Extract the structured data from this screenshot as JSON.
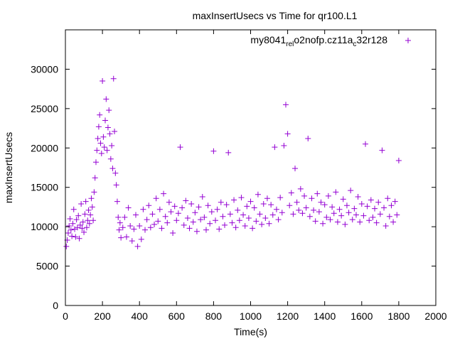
{
  "chart_data": {
    "type": "scatter",
    "title": "maxInsertUsecs vs Time for qr100.L1",
    "xlabel": "Time(s)",
    "ylabel": "maxInsertUsecs",
    "xlim": [
      0,
      2000
    ],
    "ylim": [
      0,
      35000
    ],
    "x_ticks": [
      0,
      200,
      400,
      600,
      800,
      1000,
      1200,
      1400,
      1600,
      1800,
      2000
    ],
    "y_ticks": [
      0,
      5000,
      10000,
      15000,
      20000,
      25000,
      30000
    ],
    "grid": false,
    "legend_position": "top-right",
    "marker": "plus",
    "series": [
      {
        "name": "my8041_rel_o2nofp.cz11a_c32r128",
        "legend_parts": [
          {
            "text": "my8041",
            "sub": false
          },
          {
            "text": "rel",
            "sub": true
          },
          {
            "text": "o",
            "sub": false
          },
          {
            "text": "2nofp.cz11a",
            "sub": false
          },
          {
            "text": "c",
            "sub": true
          },
          {
            "text": "32r128",
            "sub": false
          }
        ],
        "color": "#9400d3",
        "points": [
          [
            5,
            7500
          ],
          [
            10,
            8300
          ],
          [
            15,
            9200
          ],
          [
            20,
            10100
          ],
          [
            25,
            11000
          ],
          [
            30,
            9600
          ],
          [
            35,
            8800
          ],
          [
            40,
            10400
          ],
          [
            45,
            12200
          ],
          [
            50,
            9700
          ],
          [
            55,
            8700
          ],
          [
            60,
            10900
          ],
          [
            65,
            9900
          ],
          [
            70,
            11400
          ],
          [
            75,
            8500
          ],
          [
            80,
            10200
          ],
          [
            85,
            12900
          ],
          [
            90,
            9800
          ],
          [
            95,
            10600
          ],
          [
            100,
            9300
          ],
          [
            105,
            11600
          ],
          [
            110,
            13200
          ],
          [
            115,
            9900
          ],
          [
            120,
            10800
          ],
          [
            125,
            12100
          ],
          [
            130,
            10400
          ],
          [
            135,
            11500
          ],
          [
            140,
            13600
          ],
          [
            145,
            12500
          ],
          [
            150,
            10800
          ],
          [
            155,
            14400
          ],
          [
            160,
            16200
          ],
          [
            165,
            18200
          ],
          [
            170,
            19700
          ],
          [
            175,
            21200
          ],
          [
            180,
            22700
          ],
          [
            185,
            24200
          ],
          [
            190,
            20600
          ],
          [
            195,
            19300
          ],
          [
            200,
            28500
          ],
          [
            205,
            21400
          ],
          [
            210,
            20100
          ],
          [
            215,
            23500
          ],
          [
            220,
            26200
          ],
          [
            225,
            19700
          ],
          [
            230,
            22600
          ],
          [
            235,
            24800
          ],
          [
            240,
            21800
          ],
          [
            245,
            18600
          ],
          [
            250,
            20300
          ],
          [
            255,
            17400
          ],
          [
            260,
            28800
          ],
          [
            265,
            22100
          ],
          [
            270,
            16800
          ],
          [
            275,
            15300
          ],
          [
            280,
            13200
          ],
          [
            285,
            11200
          ],
          [
            290,
            9600
          ],
          [
            295,
            10500
          ],
          [
            300,
            8600
          ],
          [
            310,
            9900
          ],
          [
            320,
            11200
          ],
          [
            330,
            8700
          ],
          [
            340,
            12400
          ],
          [
            350,
            10100
          ],
          [
            360,
            8200
          ],
          [
            370,
            9700
          ],
          [
            380,
            11500
          ],
          [
            390,
            7500
          ],
          [
            400,
            10100
          ],
          [
            410,
            8400
          ],
          [
            420,
            12200
          ],
          [
            430,
            9600
          ],
          [
            440,
            10900
          ],
          [
            450,
            12700
          ],
          [
            460,
            9900
          ],
          [
            470,
            11600
          ],
          [
            480,
            10300
          ],
          [
            490,
            13600
          ],
          [
            500,
            10700
          ],
          [
            510,
            12200
          ],
          [
            520,
            9800
          ],
          [
            530,
            14200
          ],
          [
            540,
            11300
          ],
          [
            550,
            10500
          ],
          [
            560,
            13100
          ],
          [
            570,
            11900
          ],
          [
            580,
            9200
          ],
          [
            590,
            12600
          ],
          [
            600,
            10800
          ],
          [
            610,
            11700
          ],
          [
            620,
            20100
          ],
          [
            630,
            12400
          ],
          [
            640,
            10200
          ],
          [
            650,
            13300
          ],
          [
            660,
            11100
          ],
          [
            670,
            9800
          ],
          [
            680,
            12900
          ],
          [
            690,
            10600
          ],
          [
            700,
            11800
          ],
          [
            710,
            9400
          ],
          [
            720,
            12500
          ],
          [
            730,
            10900
          ],
          [
            740,
            13800
          ],
          [
            750,
            11200
          ],
          [
            760,
            9600
          ],
          [
            770,
            12700
          ],
          [
            780,
            10400
          ],
          [
            790,
            11900
          ],
          [
            800,
            19600
          ],
          [
            810,
            10800
          ],
          [
            820,
            12200
          ],
          [
            830,
            9700
          ],
          [
            840,
            13100
          ],
          [
            850,
            11300
          ],
          [
            860,
            10200
          ],
          [
            870,
            12800
          ],
          [
            880,
            19400
          ],
          [
            890,
            11600
          ],
          [
            900,
            10500
          ],
          [
            910,
            13400
          ],
          [
            920,
            9900
          ],
          [
            930,
            12100
          ],
          [
            940,
            10800
          ],
          [
            950,
            13700
          ],
          [
            960,
            11500
          ],
          [
            970,
            10100
          ],
          [
            980,
            12600
          ],
          [
            990,
            11100
          ],
          [
            1000,
            13200
          ],
          [
            1010,
            9800
          ],
          [
            1020,
            12400
          ],
          [
            1030,
            10700
          ],
          [
            1040,
            14100
          ],
          [
            1050,
            11600
          ],
          [
            1060,
            10300
          ],
          [
            1070,
            12900
          ],
          [
            1080,
            11100
          ],
          [
            1090,
            13600
          ],
          [
            1100,
            10400
          ],
          [
            1110,
            12800
          ],
          [
            1120,
            11500
          ],
          [
            1130,
            20100
          ],
          [
            1140,
            12200
          ],
          [
            1150,
            10900
          ],
          [
            1160,
            13700
          ],
          [
            1170,
            11800
          ],
          [
            1180,
            20300
          ],
          [
            1190,
            25500
          ],
          [
            1200,
            21800
          ],
          [
            1210,
            12700
          ],
          [
            1220,
            14300
          ],
          [
            1230,
            11600
          ],
          [
            1240,
            17400
          ],
          [
            1250,
            13100
          ],
          [
            1260,
            12100
          ],
          [
            1270,
            14800
          ],
          [
            1280,
            11700
          ],
          [
            1290,
            13900
          ],
          [
            1300,
            12400
          ],
          [
            1310,
            21200
          ],
          [
            1320,
            11300
          ],
          [
            1330,
            13600
          ],
          [
            1340,
            12100
          ],
          [
            1350,
            10700
          ],
          [
            1360,
            14200
          ],
          [
            1370,
            11900
          ],
          [
            1380,
            13100
          ],
          [
            1390,
            10400
          ],
          [
            1400,
            12800
          ],
          [
            1410,
            11200
          ],
          [
            1420,
            13900
          ],
          [
            1430,
            10900
          ],
          [
            1440,
            12500
          ],
          [
            1450,
            11700
          ],
          [
            1460,
            14400
          ],
          [
            1470,
            10600
          ],
          [
            1480,
            12200
          ],
          [
            1490,
            11400
          ],
          [
            1500,
            13500
          ],
          [
            1510,
            10300
          ],
          [
            1520,
            12700
          ],
          [
            1530,
            11800
          ],
          [
            1540,
            14600
          ],
          [
            1550,
            10900
          ],
          [
            1560,
            12300
          ],
          [
            1570,
            11500
          ],
          [
            1580,
            13800
          ],
          [
            1590,
            10600
          ],
          [
            1600,
            12900
          ],
          [
            1610,
            11400
          ],
          [
            1620,
            20500
          ],
          [
            1630,
            12600
          ],
          [
            1640,
            10800
          ],
          [
            1650,
            13400
          ],
          [
            1660,
            11200
          ],
          [
            1670,
            12300
          ],
          [
            1680,
            10500
          ],
          [
            1690,
            13100
          ],
          [
            1700,
            11600
          ],
          [
            1710,
            19700
          ],
          [
            1720,
            12400
          ],
          [
            1730,
            10100
          ],
          [
            1740,
            13600
          ],
          [
            1750,
            11300
          ],
          [
            1760,
            12700
          ],
          [
            1770,
            10600
          ],
          [
            1780,
            13200
          ],
          [
            1790,
            11500
          ],
          [
            1800,
            18400
          ]
        ]
      }
    ]
  }
}
